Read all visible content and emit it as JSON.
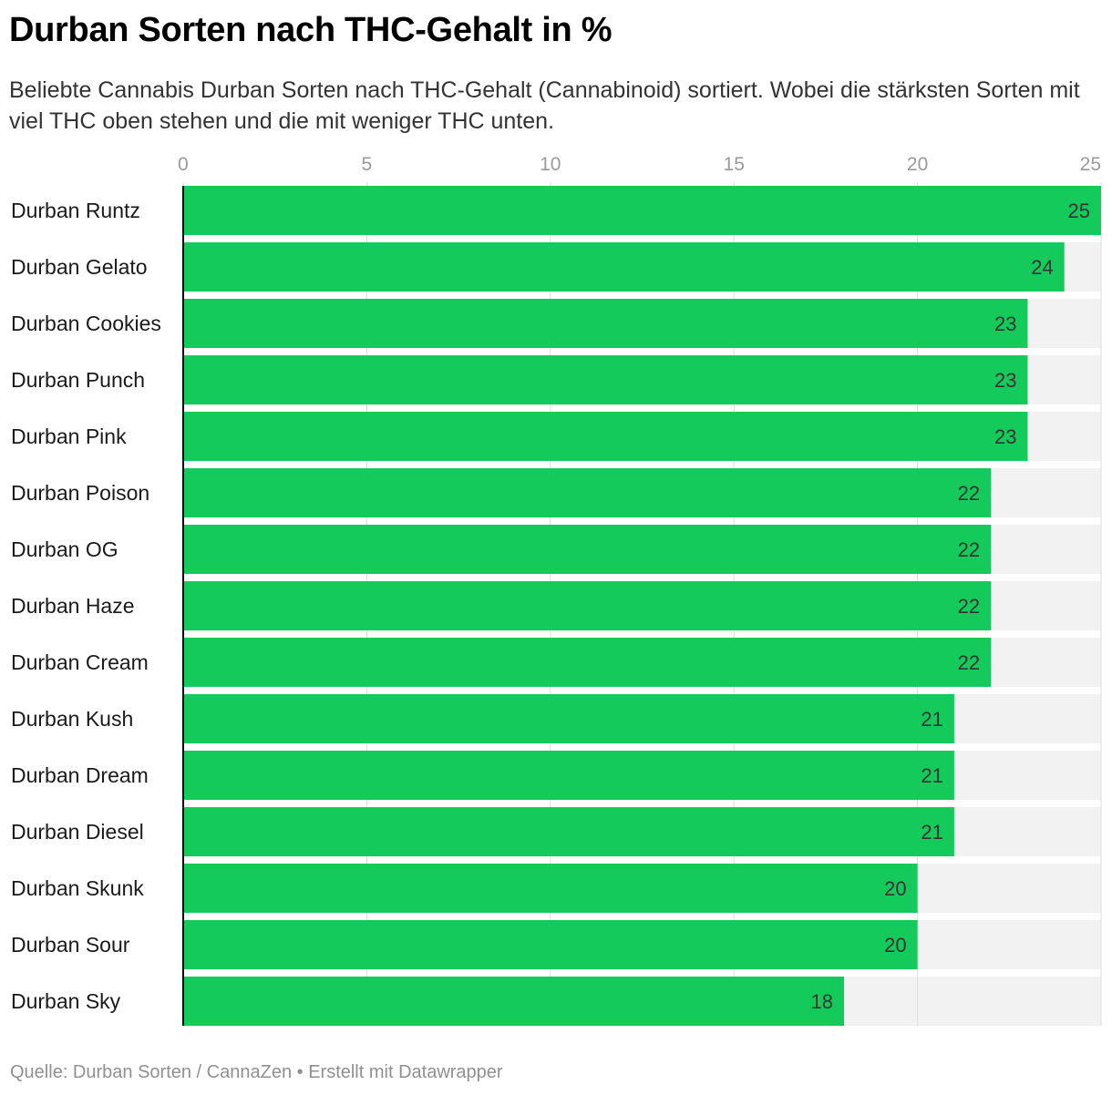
{
  "title": "Durban Sorten nach THC-Gehalt in %",
  "subtitle": "Beliebte Cannabis Durban Sorten nach THC-Gehalt (Cannabinoid) sortiert. Wobei die stärksten Sorten mit viel THC oben stehen und die mit weniger THC unten.",
  "footer": "Quelle: Durban Sorten / CannaZen • Erstellt mit Datawrapper",
  "colors": {
    "bar": "#13ca5a",
    "background_bar": "#f2f2f2",
    "grid": "#dddddd",
    "axis": "#000000"
  },
  "chart_data": {
    "type": "bar",
    "orientation": "horizontal",
    "title": "Durban Sorten nach THC-Gehalt in %",
    "xlim": [
      0,
      25
    ],
    "ticks": [
      0,
      5,
      10,
      15,
      20,
      25
    ],
    "grid": true,
    "categories": [
      "Durban Runtz",
      "Durban Gelato",
      "Durban Cookies",
      "Durban Punch",
      "Durban Pink",
      "Durban Poison",
      "Durban OG",
      "Durban Haze",
      "Durban Cream",
      "Durban Kush",
      "Durban Dream",
      "Durban Diesel",
      "Durban Skunk",
      "Durban Sour",
      "Durban Sky"
    ],
    "values": [
      25,
      24,
      23,
      23,
      23,
      22,
      22,
      22,
      22,
      21,
      21,
      21,
      20,
      20,
      18
    ]
  }
}
